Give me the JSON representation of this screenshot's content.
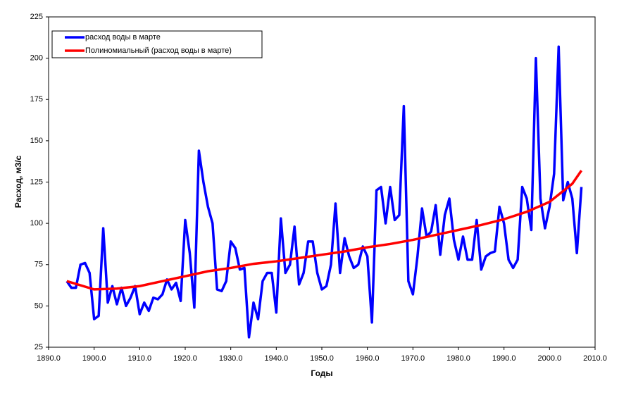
{
  "chart_data": {
    "type": "line",
    "xlabel": "Годы",
    "ylabel": "Расход, м3/с",
    "xlim": [
      1890,
      2010
    ],
    "xticks": [
      {
        "value": 1890,
        "label": "1890.0"
      },
      {
        "value": 1900,
        "label": "1900.0"
      },
      {
        "value": 1910,
        "label": "1910.0"
      },
      {
        "value": 1920,
        "label": "1920.0"
      },
      {
        "value": 1930,
        "label": "1930.0"
      },
      {
        "value": 1940,
        "label": "1940.0"
      },
      {
        "value": 1950,
        "label": "1950.0"
      },
      {
        "value": 1960,
        "label": "1960.0"
      },
      {
        "value": 1970,
        "label": "1970.0"
      },
      {
        "value": 1980,
        "label": "1980.0"
      },
      {
        "value": 1990,
        "label": "1990.0"
      },
      {
        "value": 2000,
        "label": "2000.0"
      },
      {
        "value": 2010,
        "label": "2010.0"
      }
    ],
    "ylim": [
      25,
      225
    ],
    "yticks": [
      25,
      50,
      75,
      100,
      125,
      150,
      175,
      200,
      225
    ],
    "legend": "upper left",
    "series": [
      {
        "name": "расход воды в марте",
        "color": "#0000ff",
        "x": [
          1894,
          1895,
          1896,
          1897,
          1898,
          1899,
          1900,
          1901,
          1902,
          1903,
          1904,
          1905,
          1906,
          1907,
          1908,
          1909,
          1910,
          1911,
          1912,
          1913,
          1914,
          1915,
          1916,
          1917,
          1918,
          1919,
          1920,
          1921,
          1922,
          1923,
          1924,
          1925,
          1926,
          1927,
          1928,
          1929,
          1930,
          1931,
          1932,
          1933,
          1934,
          1935,
          1936,
          1937,
          1938,
          1939,
          1940,
          1941,
          1942,
          1943,
          1944,
          1945,
          1946,
          1947,
          1948,
          1949,
          1950,
          1951,
          1952,
          1953,
          1954,
          1955,
          1956,
          1957,
          1958,
          1959,
          1960,
          1961,
          1962,
          1963,
          1964,
          1965,
          1966,
          1967,
          1968,
          1969,
          1970,
          1971,
          1972,
          1973,
          1974,
          1975,
          1976,
          1977,
          1978,
          1979,
          1980,
          1981,
          1982,
          1983,
          1984,
          1985,
          1986,
          1987,
          1988,
          1989,
          1990,
          1991,
          1992,
          1993,
          1994,
          1995,
          1996,
          1997,
          1998,
          1999,
          2000,
          2001,
          2002,
          2003,
          2004,
          2005,
          2006,
          2007
        ],
        "values": [
          65,
          61,
          61,
          75,
          76,
          70,
          42,
          44,
          97,
          52,
          62,
          51,
          61,
          50,
          55,
          62,
          45,
          52,
          47,
          55,
          54,
          57,
          66,
          60,
          64,
          53,
          102,
          82,
          49,
          144,
          125,
          110,
          100,
          60,
          59,
          65,
          89,
          85,
          72,
          73,
          31,
          52,
          42,
          65,
          70,
          70,
          46,
          103,
          70,
          75,
          98,
          63,
          70,
          89,
          89,
          70,
          60,
          62,
          75,
          112,
          70,
          91,
          80,
          73,
          75,
          86,
          80,
          40,
          120,
          122,
          100,
          122,
          102,
          105,
          171,
          65,
          57,
          80,
          109,
          92,
          95,
          111,
          81,
          105,
          115,
          90,
          78,
          92,
          78,
          78,
          102,
          72,
          80,
          82,
          83,
          110,
          100,
          78,
          73,
          78,
          122,
          115,
          96,
          200,
          115,
          97,
          110,
          130,
          207,
          114,
          125,
          115,
          82,
          122
        ]
      },
      {
        "name": "Полиномиальный (расход воды в марте)",
        "color": "#ff0000",
        "x": [
          1894,
          1900,
          1905,
          1910,
          1915,
          1920,
          1925,
          1930,
          1935,
          1940,
          1945,
          1950,
          1955,
          1960,
          1965,
          1970,
          1975,
          1980,
          1985,
          1990,
          1995,
          2000,
          2005,
          2007
        ],
        "values": [
          65,
          60,
          60.5,
          62,
          65,
          68,
          71,
          73,
          75.5,
          77,
          79,
          81,
          83,
          85.5,
          87.5,
          90,
          93,
          96,
          99,
          102.5,
          107,
          113,
          124,
          132
        ]
      }
    ]
  }
}
